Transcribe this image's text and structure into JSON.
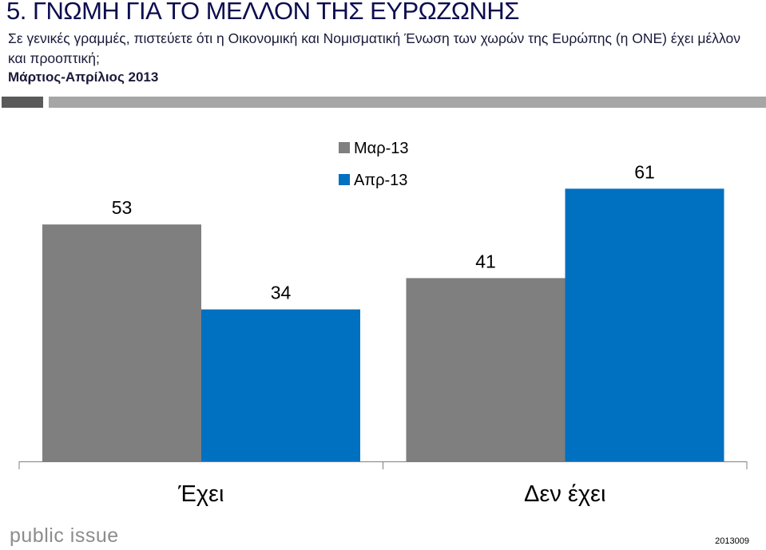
{
  "header": {
    "title": "5. ΓΝΩΜΗ ΓΙΑ ΤΟ ΜΕΛΛΟΝ ΤΗΣ ΕΥΡΩΖΩΝΗΣ",
    "question": "Σε γενικές γραμμές, πιστεύετε ότι η Οικονομική και Νομισματική Ένωση των χωρών της Ευρώπης (η ΟΝΕ) έχει μέλλον και προοπτική;",
    "period": "Μάρτιος-Απρίλιος 2013"
  },
  "footer": {
    "logo": "public issue",
    "code": "2013009"
  },
  "colors": {
    "title": "#0d0d4f",
    "series_mar": "#7f7f7f",
    "series_apr": "#0070c0"
  },
  "chart_data": {
    "type": "bar",
    "title": "",
    "xlabel": "",
    "ylabel": "",
    "categories": [
      "Έχει",
      "Δεν έχει"
    ],
    "series": [
      {
        "name": "Μαρ-13",
        "color": "#7f7f7f",
        "values": [
          53,
          41
        ]
      },
      {
        "name": "Απρ-13",
        "color": "#0070c0",
        "values": [
          34,
          61
        ]
      }
    ],
    "ylim": [
      0,
      80
    ],
    "grid": false,
    "legend": "top-center"
  }
}
